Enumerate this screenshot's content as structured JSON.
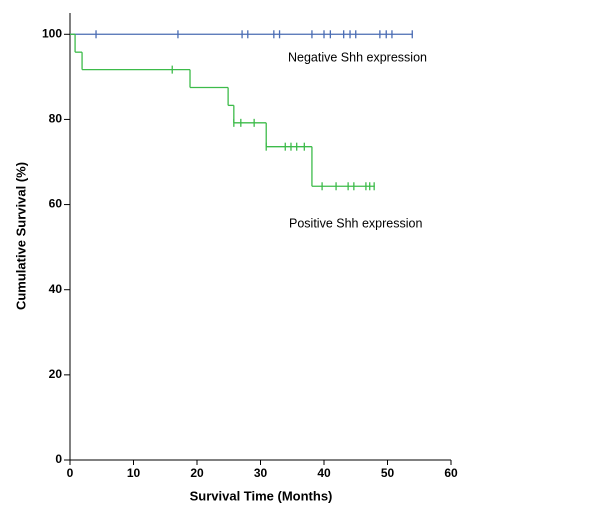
{
  "chart_data": {
    "type": "kaplan-meier",
    "xlabel": "Survival Time (Months)",
    "ylabel": "Cumulative  Survival (%)",
    "xlim": [
      0,
      60
    ],
    "ylim": [
      0,
      105
    ],
    "xticks": [
      0,
      10,
      20,
      30,
      40,
      50,
      60
    ],
    "yticks": [
      0,
      20,
      40,
      60,
      80,
      100
    ],
    "series": [
      {
        "name": "Negative  Shh expression",
        "color": "#4a6cb3",
        "x": [
          0,
          54
        ],
        "values": [
          100,
          100
        ],
        "censor_x": [
          4.1,
          17,
          27.1,
          28,
          32.1,
          33,
          38.1,
          40,
          41,
          43.1,
          44.1,
          45,
          48.8,
          49.8,
          50.7,
          53.9
        ],
        "censor_values": [
          100,
          100,
          100,
          100,
          100,
          100,
          100,
          100,
          100,
          100,
          100,
          100,
          100,
          100,
          100,
          100
        ]
      },
      {
        "name": "Positive  Shh expression",
        "color": "#3dbb4a",
        "x": [
          0,
          0.8,
          1.9,
          18.9,
          24.9,
          25.8,
          30.9,
          38.1,
          48
        ],
        "values": [
          100,
          95.8,
          91.7,
          87.5,
          83.3,
          79.2,
          73.6,
          64.3,
          64.3
        ],
        "censor_x": [
          16.1,
          25.8,
          26.9,
          29,
          30.9,
          33.9,
          34.8,
          35.7,
          36.9,
          39.7,
          41.9,
          43.8,
          44.7,
          46.6,
          47.2,
          47.9
        ],
        "censor_values": [
          91.7,
          79.2,
          79.2,
          79.2,
          73.6,
          73.6,
          73.6,
          73.6,
          73.6,
          64.3,
          64.3,
          64.3,
          64.3,
          64.3,
          64.3,
          64.3
        ]
      }
    ]
  }
}
